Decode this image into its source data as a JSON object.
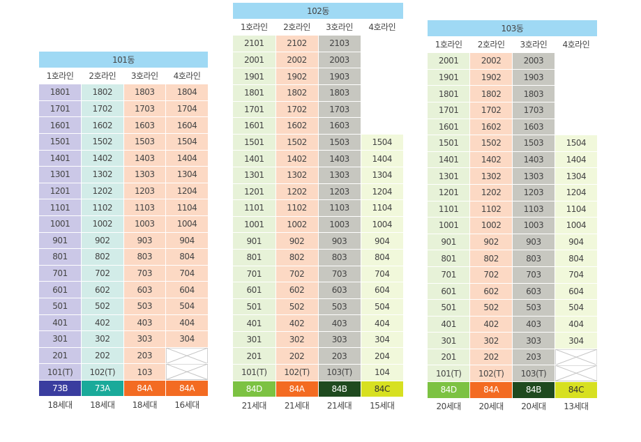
{
  "buildings": [
    {
      "name": "101동",
      "lines": [
        "1호라인",
        "2호라인",
        "3호라인",
        "4호라인"
      ],
      "rows": [
        [
          "1801",
          "1802",
          "1803",
          "1804"
        ],
        [
          "1701",
          "1702",
          "1703",
          "1704"
        ],
        [
          "1601",
          "1602",
          "1603",
          "1604"
        ],
        [
          "1501",
          "1502",
          "1503",
          "1504"
        ],
        [
          "1401",
          "1402",
          "1403",
          "1404"
        ],
        [
          "1301",
          "1302",
          "1303",
          "1304"
        ],
        [
          "1201",
          "1202",
          "1203",
          "1204"
        ],
        [
          "1101",
          "1102",
          "1103",
          "1104"
        ],
        [
          "1001",
          "1002",
          "1003",
          "1004"
        ],
        [
          "901",
          "902",
          "903",
          "904"
        ],
        [
          "801",
          "802",
          "803",
          "804"
        ],
        [
          "701",
          "702",
          "703",
          "704"
        ],
        [
          "601",
          "602",
          "603",
          "604"
        ],
        [
          "501",
          "502",
          "503",
          "504"
        ],
        [
          "401",
          "402",
          "403",
          "404"
        ],
        [
          "301",
          "302",
          "303",
          "304"
        ],
        [
          "201",
          "202",
          "203",
          null
        ],
        [
          "101(T)",
          "102(T)",
          "103",
          null
        ]
      ],
      "cell_colors": [
        "#cbc8e7",
        "#d2ece8",
        "#fcd9c4",
        "#fcd9c4"
      ],
      "types": [
        "73B",
        "73A",
        "84A",
        "84A"
      ],
      "type_colors": [
        "#3a3d9f",
        "#1aaa9a",
        "#f36b22",
        "#f36b22"
      ],
      "type_text_colors": [
        "#ffffff",
        "#ffffff",
        "#ffffff",
        "#ffffff"
      ],
      "counts": [
        "18세대",
        "18세대",
        "18세대",
        "16세대"
      ]
    },
    {
      "name": "102동",
      "lines": [
        "1호라인",
        "2호라인",
        "3호라인",
        "4호라인"
      ],
      "rows": [
        [
          "2101",
          "2102",
          "2103",
          ""
        ],
        [
          "2001",
          "2002",
          "2003",
          ""
        ],
        [
          "1901",
          "1902",
          "1903",
          ""
        ],
        [
          "1801",
          "1802",
          "1803",
          ""
        ],
        [
          "1701",
          "1702",
          "1703",
          ""
        ],
        [
          "1601",
          "1602",
          "1603",
          ""
        ],
        [
          "1501",
          "1502",
          "1503",
          "1504"
        ],
        [
          "1401",
          "1402",
          "1403",
          "1404"
        ],
        [
          "1301",
          "1302",
          "1303",
          "1304"
        ],
        [
          "1201",
          "1202",
          "1203",
          "1204"
        ],
        [
          "1101",
          "1102",
          "1103",
          "1104"
        ],
        [
          "1001",
          "1002",
          "1003",
          "1004"
        ],
        [
          "901",
          "902",
          "903",
          "904"
        ],
        [
          "801",
          "802",
          "803",
          "804"
        ],
        [
          "701",
          "702",
          "703",
          "704"
        ],
        [
          "601",
          "602",
          "603",
          "604"
        ],
        [
          "501",
          "502",
          "503",
          "504"
        ],
        [
          "401",
          "402",
          "403",
          "404"
        ],
        [
          "301",
          "302",
          "303",
          "304"
        ],
        [
          "201",
          "202",
          "203",
          "204"
        ],
        [
          "101(T)",
          "102(T)",
          "103(T)",
          "104"
        ]
      ],
      "cell_colors": [
        "#e7f2d8",
        "#fcd9c4",
        "#c7c7c0",
        "#f1f8db"
      ],
      "types": [
        "84D",
        "84A",
        "84B",
        "84C"
      ],
      "type_colors": [
        "#7cc242",
        "#f36b22",
        "#1f4a1f",
        "#d7e021"
      ],
      "type_text_colors": [
        "#ffffff",
        "#ffffff",
        "#ffffff",
        "#333333"
      ],
      "counts": [
        "21세대",
        "21세대",
        "21세대",
        "15세대"
      ]
    },
    {
      "name": "103동",
      "lines": [
        "1호라인",
        "2호라인",
        "3호라인",
        "4호라인"
      ],
      "rows": [
        [
          "2001",
          "2002",
          "2003",
          ""
        ],
        [
          "1901",
          "1902",
          "1903",
          ""
        ],
        [
          "1801",
          "1802",
          "1803",
          ""
        ],
        [
          "1701",
          "1702",
          "1703",
          ""
        ],
        [
          "1601",
          "1602",
          "1603",
          ""
        ],
        [
          "1501",
          "1502",
          "1503",
          "1504"
        ],
        [
          "1401",
          "1402",
          "1403",
          "1404"
        ],
        [
          "1301",
          "1302",
          "1303",
          "1304"
        ],
        [
          "1201",
          "1202",
          "1203",
          "1204"
        ],
        [
          "1101",
          "1102",
          "1103",
          "1104"
        ],
        [
          "1001",
          "1002",
          "1003",
          "1004"
        ],
        [
          "901",
          "902",
          "903",
          "904"
        ],
        [
          "801",
          "802",
          "803",
          "804"
        ],
        [
          "701",
          "702",
          "703",
          "704"
        ],
        [
          "601",
          "602",
          "603",
          "604"
        ],
        [
          "501",
          "502",
          "503",
          "504"
        ],
        [
          "401",
          "402",
          "403",
          "404"
        ],
        [
          "301",
          "302",
          "303",
          "304"
        ],
        [
          "201",
          "202",
          "203",
          null
        ],
        [
          "101(T)",
          "102(T)",
          "103(T)",
          null
        ]
      ],
      "cell_colors": [
        "#e7f2d8",
        "#fcd9c4",
        "#c7c7c0",
        "#f1f8db"
      ],
      "types": [
        "84D",
        "84A",
        "84B",
        "84C"
      ],
      "type_colors": [
        "#7cc242",
        "#f36b22",
        "#1f4a1f",
        "#d7e021"
      ],
      "type_text_colors": [
        "#ffffff",
        "#ffffff",
        "#ffffff",
        "#333333"
      ],
      "counts": [
        "20세대",
        "20세대",
        "20세대",
        "13세대"
      ]
    }
  ]
}
